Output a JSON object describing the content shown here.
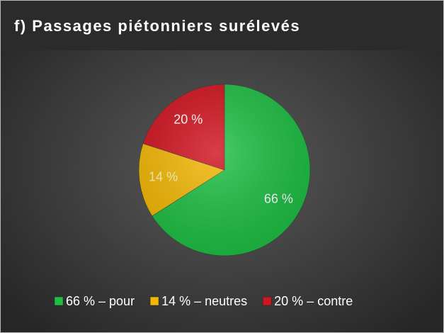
{
  "chart_data": {
    "type": "pie",
    "title": "f) Passages piétonniers surélevés",
    "categories": [
      "66 % – pour",
      "14 % – neutres",
      "20 % – contre"
    ],
    "values": [
      66,
      14,
      20
    ],
    "value_labels": [
      "66 %",
      "14 %",
      "20 %"
    ],
    "colors": [
      "#1fbf45",
      "#f2b705",
      "#d01420"
    ],
    "legend": "bottom"
  }
}
